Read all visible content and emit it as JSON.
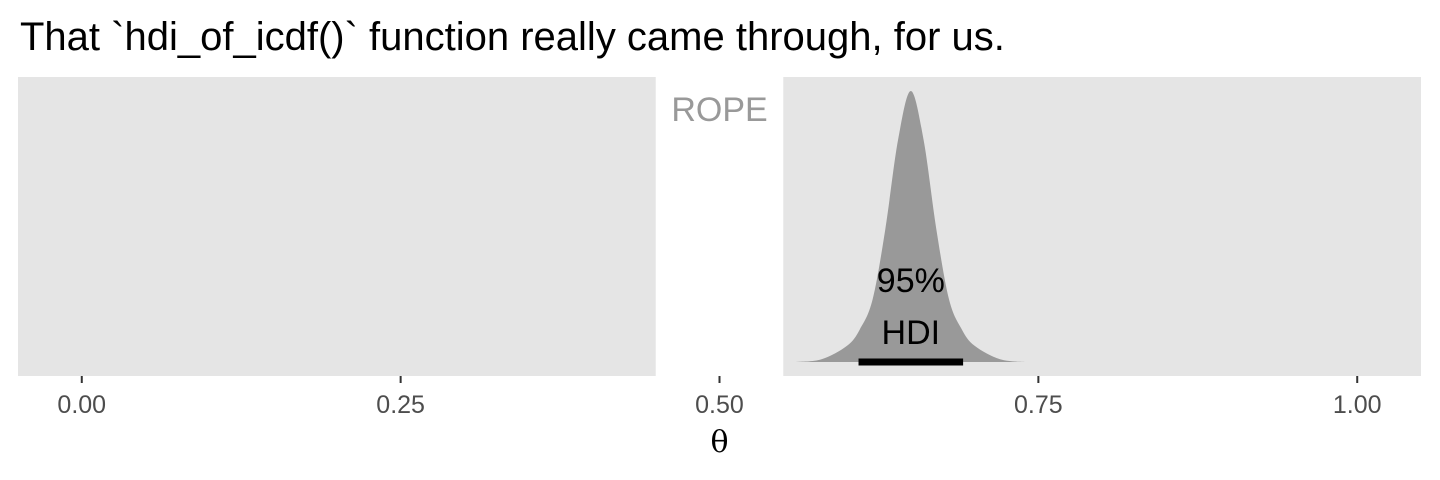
{
  "chart_data": {
    "type": "area",
    "title": "That `hdi_of_icdf()` function really came through, for us.",
    "xlabel": "θ",
    "ylabel": "",
    "xlim": [
      -0.05,
      1.05
    ],
    "x_ticks": [
      0,
      0.25,
      0.5,
      0.75,
      1
    ],
    "x_tick_labels": [
      "0.00",
      "0.25",
      "0.50",
      "0.75",
      "1.00"
    ],
    "y_ticks_shown": false,
    "grid": false,
    "rope": {
      "range": [
        0.45,
        0.55
      ],
      "label": "ROPE",
      "color": "#ffffff",
      "label_color": "#999999"
    },
    "posterior": {
      "distribution_shape": "unimodal",
      "mode": 0.65,
      "density_color": "#999999",
      "density_points": [
        {
          "x": 0.56,
          "y": 0.0
        },
        {
          "x": 0.58,
          "y": 0.01
        },
        {
          "x": 0.6,
          "y": 0.06
        },
        {
          "x": 0.61,
          "y": 0.12
        },
        {
          "x": 0.62,
          "y": 0.23
        },
        {
          "x": 0.63,
          "y": 0.49
        },
        {
          "x": 0.64,
          "y": 0.82
        },
        {
          "x": 0.65,
          "y": 1.0
        },
        {
          "x": 0.66,
          "y": 0.82
        },
        {
          "x": 0.67,
          "y": 0.49
        },
        {
          "x": 0.68,
          "y": 0.23
        },
        {
          "x": 0.69,
          "y": 0.12
        },
        {
          "x": 0.7,
          "y": 0.06
        },
        {
          "x": 0.72,
          "y": 0.01
        },
        {
          "x": 0.74,
          "y": 0.0
        }
      ]
    },
    "hdi": {
      "label_line1": "95%",
      "label_line2": "HDI",
      "interval": [
        0.609,
        0.691
      ],
      "bar_color": "#000000"
    },
    "panel_background": "#e5e5e5"
  }
}
